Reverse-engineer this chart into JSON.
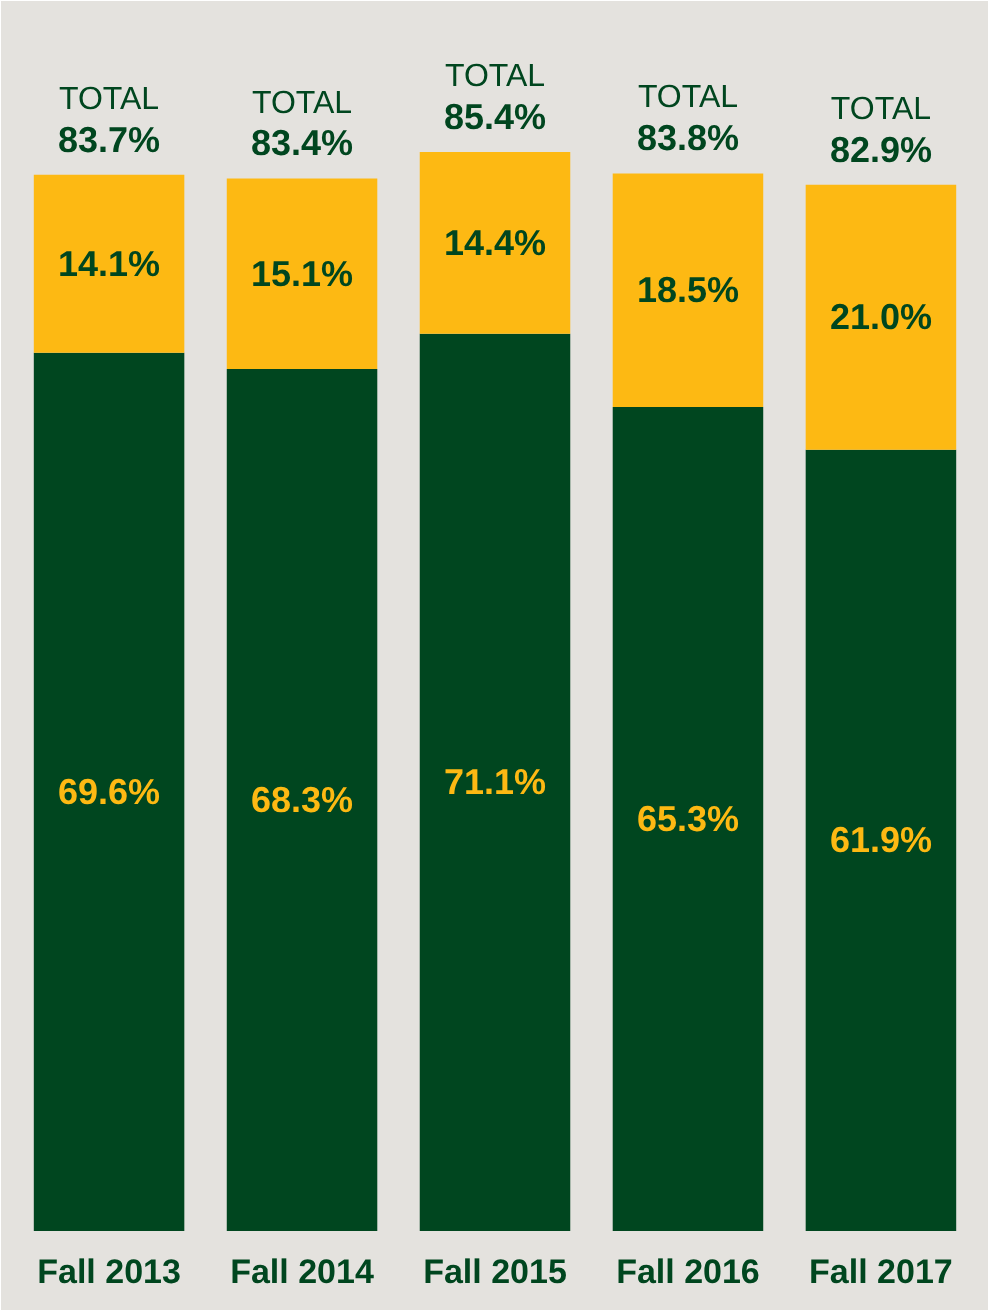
{
  "chart_data": {
    "type": "bar",
    "stacked": true,
    "categories": [
      "Fall 2013",
      "Fall 2014",
      "Fall 2015",
      "Fall 2016",
      "Fall 2017"
    ],
    "series": [
      {
        "color": "#00461f",
        "values": [
          69.6,
          68.3,
          71.1,
          65.3,
          61.9
        ],
        "value_labels": [
          "69.6%",
          "68.3%",
          "71.1%",
          "65.3%",
          "61.9%"
        ]
      },
      {
        "color": "#fdb913",
        "values": [
          14.1,
          15.1,
          14.4,
          18.5,
          21.0
        ],
        "value_labels": [
          "14.1%",
          "15.1%",
          "14.4%",
          "18.5%",
          "21.0%"
        ]
      }
    ],
    "totals": [
      "TOTAL 83.7%",
      "TOTAL 83.4%",
      "TOTAL 85.4%",
      "TOTAL 83.8%",
      "TOTAL 82.9%"
    ],
    "grid": false
  }
}
